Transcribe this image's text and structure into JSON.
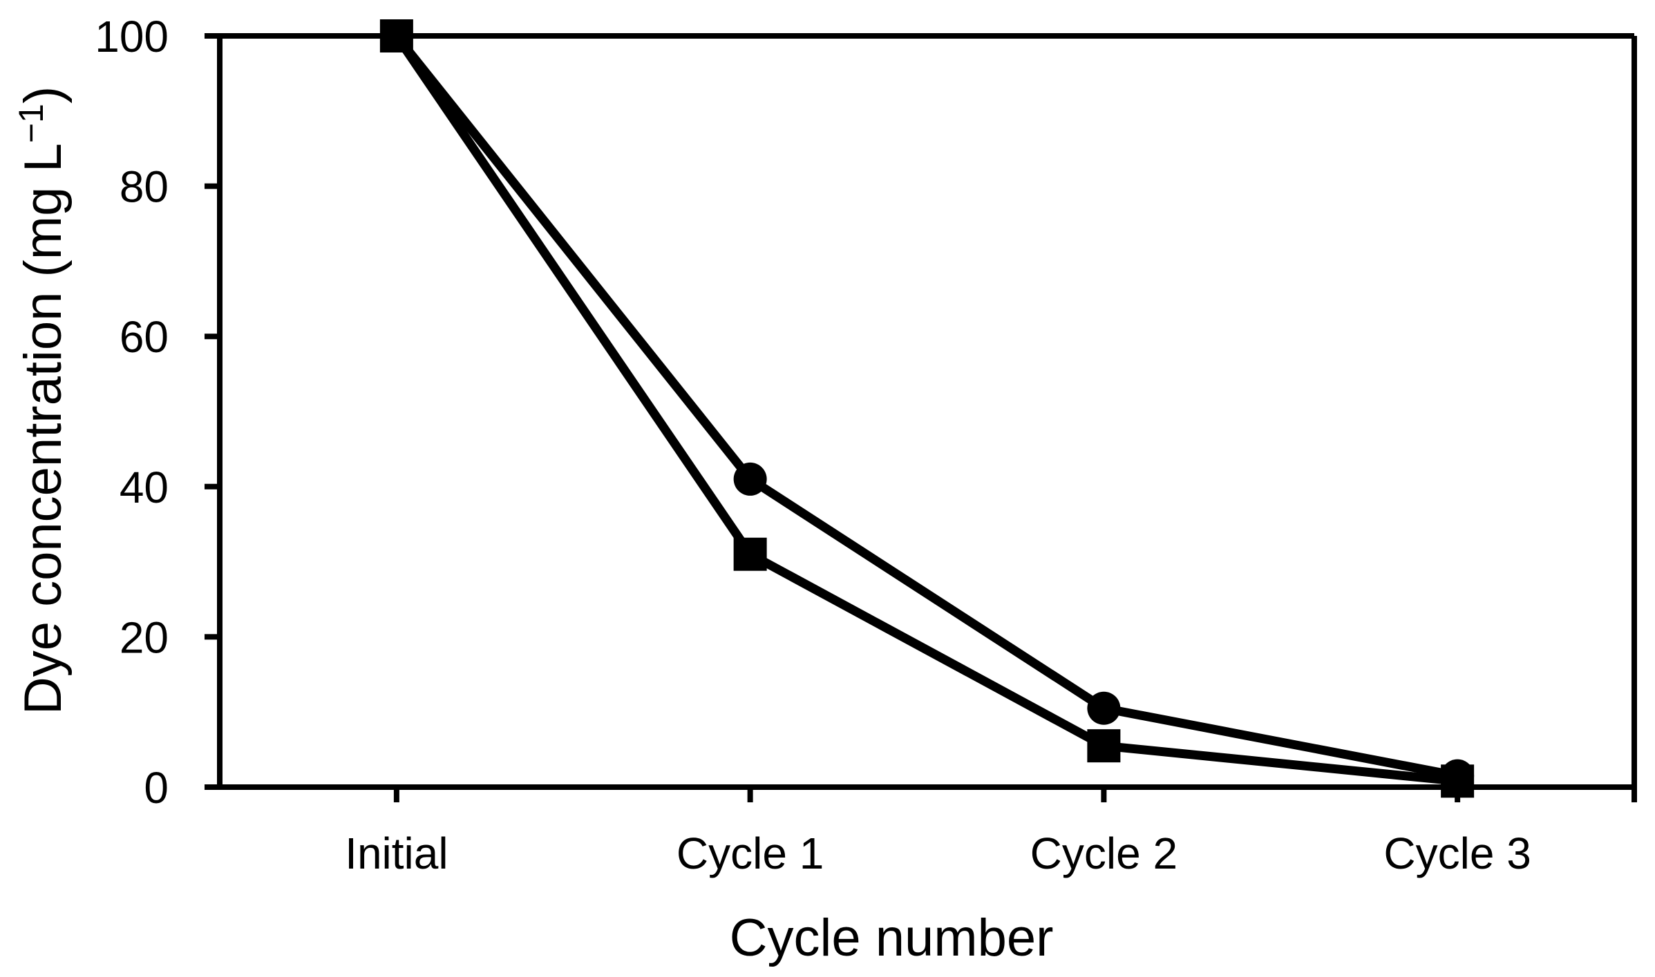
{
  "figure": {
    "background": "#ffffff",
    "line_color": "#000000",
    "text_color": "#000000"
  },
  "chart_data": {
    "type": "line",
    "title": "",
    "xlabel": "Cycle number",
    "ylabel": "Dye concentration (mg L−1)",
    "ylabel_main": "Dye concentration (mg L",
    "ylabel_sup": "−1",
    "ylabel_close": ")",
    "categories": [
      "Initial",
      "Cycle 1",
      "Cycle 2",
      "Cycle 3"
    ],
    "series": [
      {
        "name": "Series with circle markers",
        "marker": "circle",
        "color": "#000000",
        "values": [
          100,
          41,
          10.5,
          1.5
        ]
      },
      {
        "name": "Series with square markers",
        "marker": "square",
        "color": "#000000",
        "values": [
          100,
          31,
          5.5,
          0.8
        ]
      }
    ],
    "ylim": [
      0,
      100
    ],
    "yticks": [
      0,
      20,
      40,
      60,
      80,
      100
    ],
    "grid": false,
    "legend_position": "none",
    "axis_style": "full-box-border, outward tick marks, ticks at category centers"
  }
}
